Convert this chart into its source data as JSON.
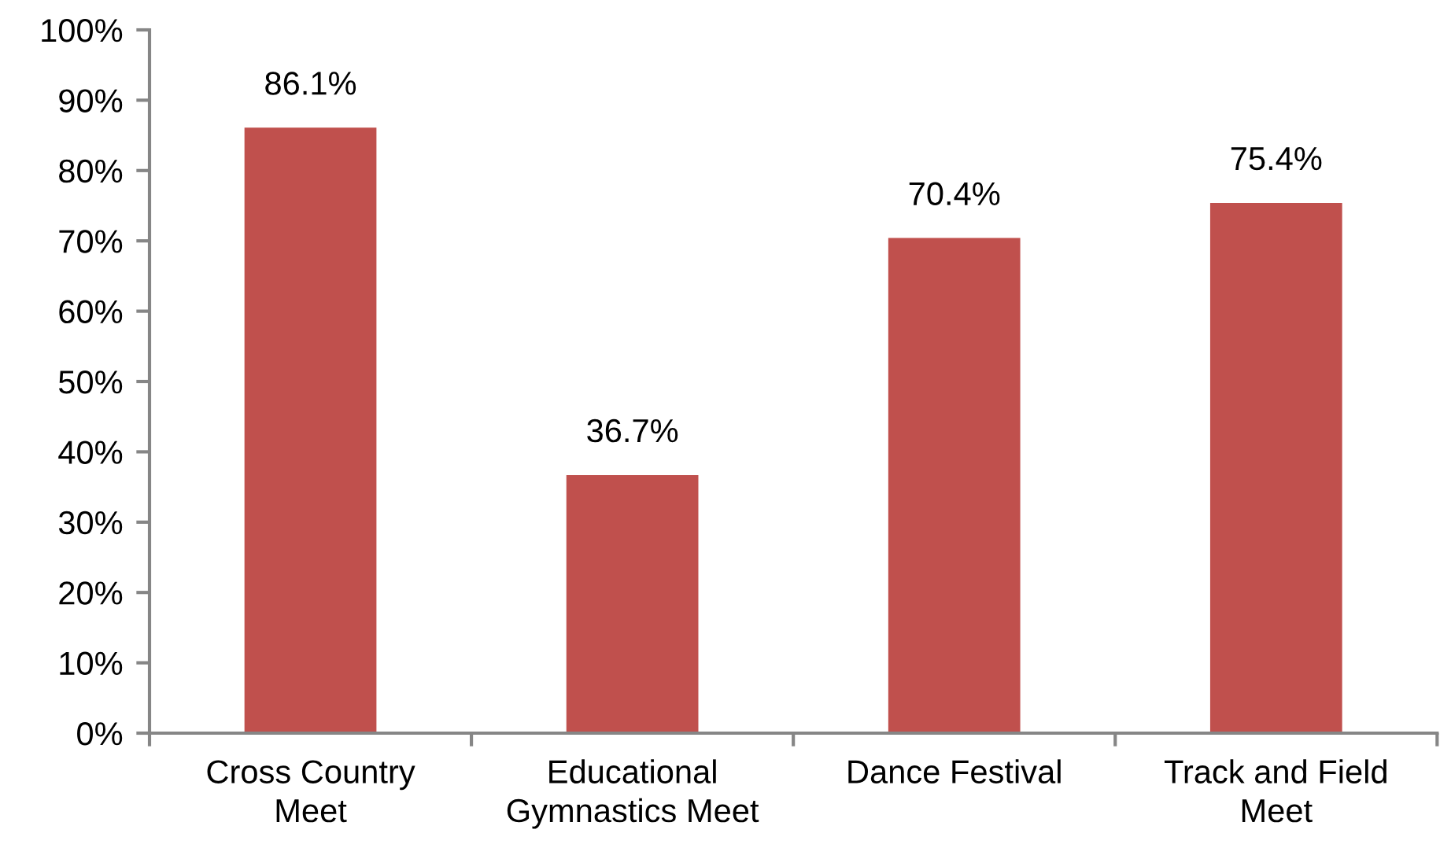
{
  "chart_data": {
    "type": "bar",
    "categories": [
      "Cross Country\nMeet",
      "Educational\nGymnastics Meet",
      "Dance Festival",
      "Track and Field\nMeet"
    ],
    "values": [
      86.1,
      36.7,
      70.4,
      75.4
    ],
    "value_labels": [
      "86.1%",
      "36.7%",
      "70.4%",
      "75.4%"
    ],
    "color": "#c0504d",
    "ylim": [
      0,
      100
    ],
    "yticks": [
      {
        "value": 0,
        "label": "0%"
      },
      {
        "value": 10,
        "label": "10%"
      },
      {
        "value": 20,
        "label": "20%"
      },
      {
        "value": 30,
        "label": "30%"
      },
      {
        "value": 40,
        "label": "40%"
      },
      {
        "value": 50,
        "label": "50%"
      },
      {
        "value": 60,
        "label": "60%"
      },
      {
        "value": 70,
        "label": "70%"
      },
      {
        "value": 80,
        "label": "80%"
      },
      {
        "value": 90,
        "label": "90%"
      },
      {
        "value": 100,
        "label": "100%"
      }
    ],
    "grid": false
  }
}
